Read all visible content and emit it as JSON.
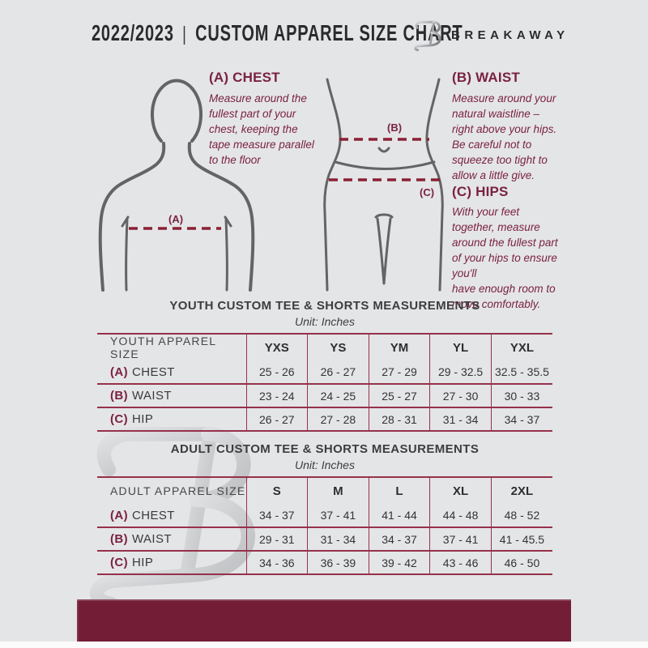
{
  "header": {
    "year": "2022/2023",
    "separator": "|",
    "title": "CUSTOM APPAREL SIZE CHART",
    "brand": "BREAKAWAY"
  },
  "sections": {
    "chest": {
      "heading": "(A) CHEST",
      "body": "Measure around the\nfullest part of your\nchest, keeping the\ntape measure parallel\nto the floor"
    },
    "waist": {
      "heading": "(B) WAIST",
      "body": "Measure around your\nnatural waistline –\nright above your hips.\nBe careful not to\nsqueeze too tight to\nallow a little give."
    },
    "hips": {
      "heading": "(C) HIPS",
      "body": "With your feet\ntogether, measure\naround the fullest part\nof your hips to ensure\nyou'll\nhave enough room to\nmove comfortably."
    }
  },
  "figure_labels": {
    "chest": "(A)",
    "waist": "(B)",
    "hips": "(C)"
  },
  "tables": {
    "youth": {
      "title": "YOUTH CUSTOM TEE & SHORTS MEASUREMENTS",
      "unit": "Unit: Inches",
      "header": [
        "YOUTH APPAREL SIZE",
        "YXS",
        "YS",
        "YM",
        "YL",
        "YXL"
      ],
      "rows": [
        {
          "prefix": "(A)",
          "label": "CHEST",
          "values": [
            "25 - 26",
            "26 - 27",
            "27 - 29",
            "29 - 32.5",
            "32.5 - 35.5"
          ]
        },
        {
          "prefix": "(B)",
          "label": "WAIST",
          "values": [
            "23 - 24",
            "24 - 25",
            "25 - 27",
            "27 - 30",
            "30 - 33"
          ]
        },
        {
          "prefix": "(C)",
          "label": "HIP",
          "values": [
            "26 - 27",
            "27 - 28",
            "28 - 31",
            "31 - 34",
            "34 - 37"
          ]
        }
      ]
    },
    "adult": {
      "title": "ADULT CUSTOM TEE & SHORTS MEASUREMENTS",
      "unit": "Unit: Inches",
      "header": [
        "ADULT APPAREL SIZE",
        "S",
        "M",
        "L",
        "XL",
        "2XL"
      ],
      "rows": [
        {
          "prefix": "(A)",
          "label": "CHEST",
          "values": [
            "34 - 37",
            "37 - 41",
            "41 - 44",
            "44 - 48",
            "48 - 52"
          ]
        },
        {
          "prefix": "(B)",
          "label": "WAIST",
          "values": [
            "29 - 31",
            "31 - 34",
            "34 - 37",
            "37 - 41",
            "41 - 45.5"
          ]
        },
        {
          "prefix": "(C)",
          "label": "HIP",
          "values": [
            "34 - 36",
            "36 - 39",
            "39 - 42",
            "43 - 46",
            "46 - 50"
          ]
        }
      ]
    }
  },
  "colors": {
    "background": "#e4e5e7",
    "maroon_text": "#7a2240",
    "dash_line": "#8a2034",
    "table_border": "#96314a",
    "footer_bar": "#731d36",
    "dark_text": "#2b2b2b",
    "figure_stroke": "#646464"
  }
}
